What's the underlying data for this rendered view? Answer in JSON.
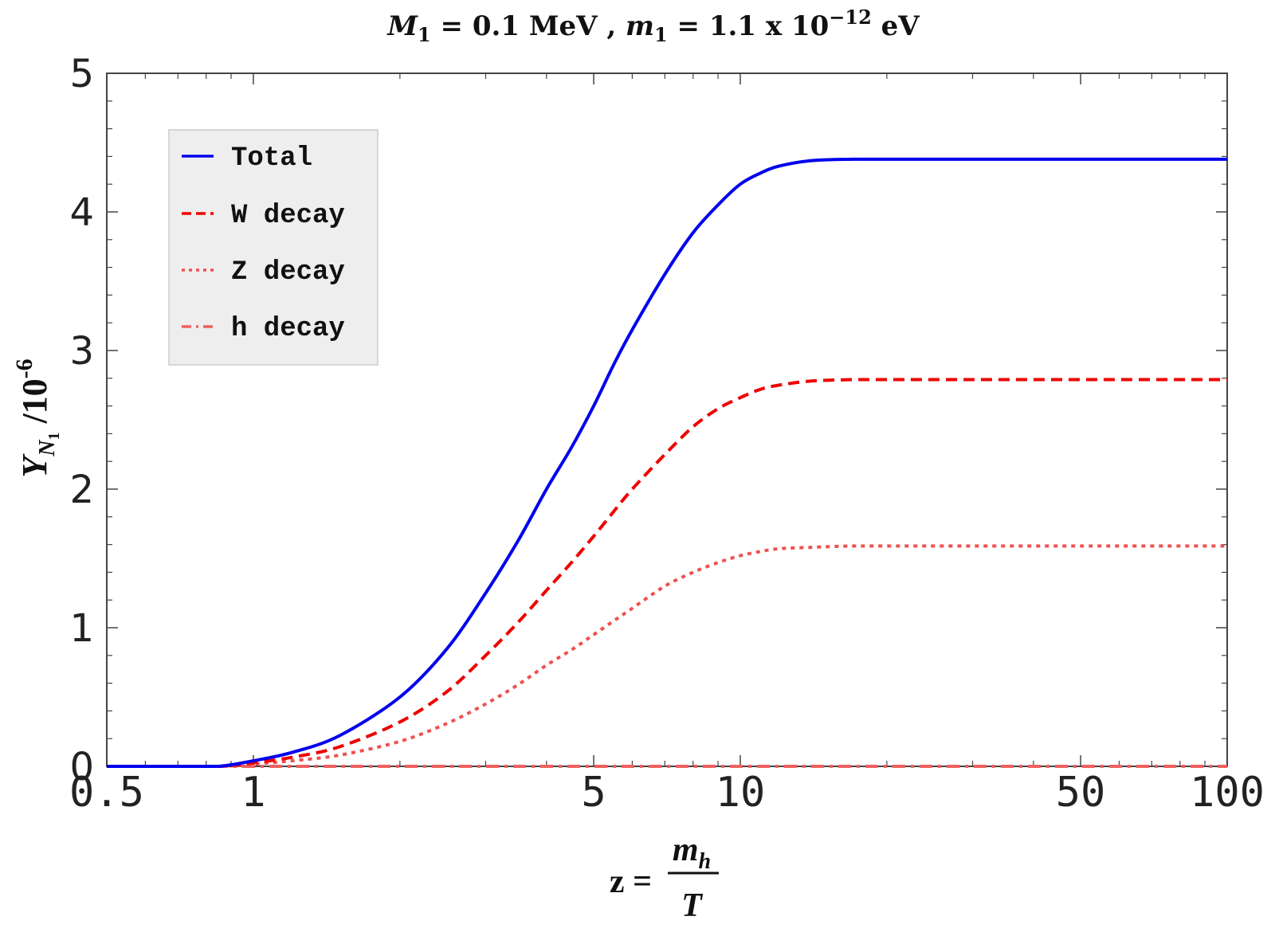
{
  "chart_data": {
    "type": "line",
    "title": {
      "M_symbol": "M",
      "M_sub": "1",
      "M_value": " = 0.1 MeV , ",
      "m_symbol": "m",
      "m_sub": "1",
      "m_value": " = 1.1 x 10",
      "m_exp": "−12",
      "m_unit": " eV"
    },
    "xlabel": {
      "lhs": "z =",
      "numerator": "m",
      "numerator_sub": "h",
      "denominator": "T"
    },
    "ylabel": {
      "symbol": "Y",
      "sub": "N",
      "subsub": "1",
      "rest": " /10",
      "exp": "-6"
    },
    "x_scale": "log",
    "xlim": [
      0.5,
      100
    ],
    "ylim": [
      0,
      5
    ],
    "x_ticks": [
      {
        "value": 0.5,
        "label": "0.5"
      },
      {
        "value": 1,
        "label": "1"
      },
      {
        "value": 5,
        "label": "5"
      },
      {
        "value": 10,
        "label": "10"
      },
      {
        "value": 50,
        "label": "50"
      },
      {
        "value": 100,
        "label": "100"
      }
    ],
    "y_ticks": [
      {
        "value": 0,
        "label": "0"
      },
      {
        "value": 1,
        "label": "1"
      },
      {
        "value": 2,
        "label": "2"
      },
      {
        "value": 3,
        "label": "3"
      },
      {
        "value": 4,
        "label": "4"
      },
      {
        "value": 5,
        "label": "5"
      }
    ],
    "x": [
      0.5,
      0.7,
      0.85,
      1.0,
      1.2,
      1.5,
      2.0,
      2.5,
      3.0,
      3.5,
      4.0,
      4.5,
      5.0,
      5.5,
      6.0,
      7.0,
      8.0,
      9.0,
      10.0,
      11.0,
      12.0,
      14.0,
      17.0,
      20.0,
      30.0,
      50.0,
      100.0
    ],
    "series": [
      {
        "name": "Total",
        "color": "#0000ee",
        "dash": "solid",
        "values": [
          0,
          0,
          0,
          0.04,
          0.1,
          0.22,
          0.5,
          0.85,
          1.25,
          1.63,
          2.0,
          2.3,
          2.6,
          2.9,
          3.15,
          3.55,
          3.85,
          4.05,
          4.2,
          4.28,
          4.33,
          4.37,
          4.38,
          4.38,
          4.38,
          4.38,
          4.38
        ]
      },
      {
        "name": "W decay",
        "color": "#ee0000",
        "dash": "dashed",
        "values": [
          0,
          0,
          0,
          0.025,
          0.065,
          0.14,
          0.32,
          0.54,
          0.8,
          1.04,
          1.27,
          1.47,
          1.66,
          1.84,
          2.0,
          2.25,
          2.45,
          2.58,
          2.66,
          2.72,
          2.75,
          2.78,
          2.79,
          2.79,
          2.79,
          2.79,
          2.79
        ]
      },
      {
        "name": "Z decay",
        "color": "#f05050",
        "dash": "dotted",
        "values": [
          0,
          0,
          0,
          0.015,
          0.04,
          0.08,
          0.18,
          0.31,
          0.45,
          0.59,
          0.73,
          0.84,
          0.95,
          1.05,
          1.14,
          1.3,
          1.4,
          1.47,
          1.52,
          1.55,
          1.57,
          1.58,
          1.59,
          1.59,
          1.59,
          1.59,
          1.59
        ]
      },
      {
        "name": "h decay",
        "color": "#f06060",
        "dash": "dashdot",
        "values": [
          0,
          0,
          0,
          0,
          0,
          0,
          0,
          0,
          0,
          0,
          0,
          0,
          0,
          0,
          0,
          0,
          0,
          0,
          0,
          0,
          0,
          0,
          0,
          0,
          0,
          0,
          0
        ]
      }
    ],
    "legend": {
      "position": "top-left",
      "items": [
        {
          "label": "Total",
          "color": "#0000ee",
          "dash": "solid"
        },
        {
          "label": "W decay",
          "color": "#ee0000",
          "dash": "dashed"
        },
        {
          "label": "Z decay",
          "color": "#f05050",
          "dash": "dotted"
        },
        {
          "label": "h decay",
          "color": "#f06060",
          "dash": "dashdot"
        }
      ]
    }
  }
}
